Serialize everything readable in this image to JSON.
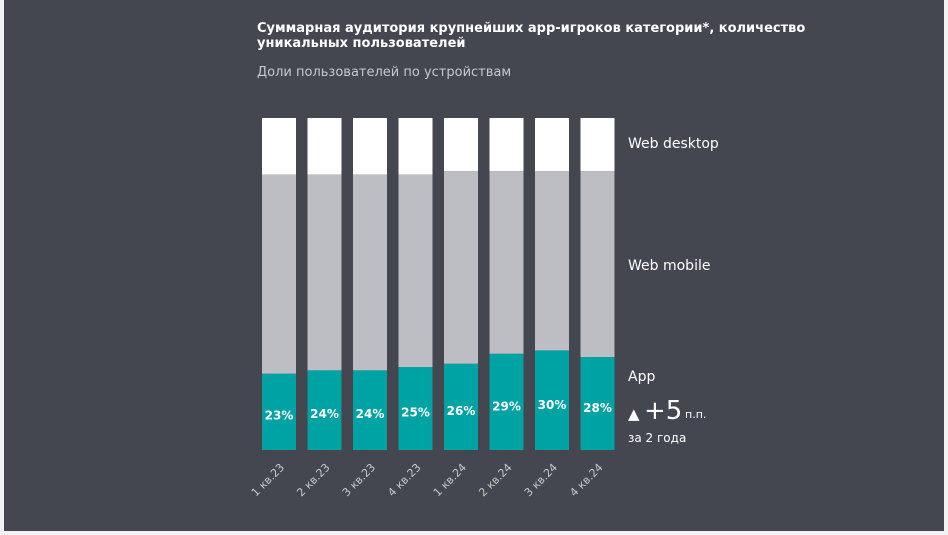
{
  "header": {
    "title": "Суммарная аудитория крупнейших app-игроков категории*, количество уникальных пользователей",
    "subtitle": "Доли пользователей по устройствам"
  },
  "colors": {
    "background": "#444650",
    "app": "#00a3a3",
    "web_mobile": "#bcbec4",
    "web_desktop": "#ffffff"
  },
  "chart_data": {
    "type": "bar",
    "stacked": true,
    "normalized": true,
    "categories": [
      "1 кв.23",
      "2 кв.23",
      "3 кв.23",
      "4 кв.23",
      "1 кв.24",
      "2 кв.24",
      "3 кв.24",
      "4 кв.24"
    ],
    "series": [
      {
        "name": "App",
        "values": [
          23,
          24,
          24,
          25,
          26,
          29,
          30,
          28
        ]
      },
      {
        "name": "Web mobile",
        "values": [
          60,
          59,
          59,
          58,
          58,
          55,
          54,
          56
        ]
      },
      {
        "name": "Web desktop",
        "values": [
          17,
          17,
          17,
          17,
          16,
          16,
          16,
          16
        ]
      }
    ],
    "data_labels": [
      "23%",
      "24%",
      "24%",
      "25%",
      "26%",
      "29%",
      "30%",
      "28%"
    ],
    "ylim": [
      0,
      100
    ],
    "grid": false,
    "legend": "right",
    "annotation": {
      "arrow": "▲",
      "value": "+5",
      "unit": "п.п.",
      "note": "за 2 года"
    }
  }
}
